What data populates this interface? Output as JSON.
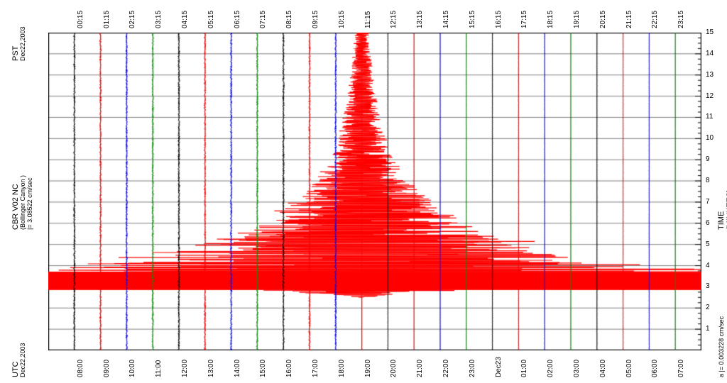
{
  "header_left": {
    "timezone": "PST",
    "date": "Dec22,2003"
  },
  "header_center": {
    "station": "CBR V02 NC",
    "location": "(Bollinger Canyon )",
    "scale_note": "= 3.08522 cm/sec"
  },
  "footer_left": {
    "timezone": "UTC",
    "date": "Dec22,2003"
  },
  "footer_right_note": "= 0.003228 cm/sec",
  "x_axis_title": "TIME (MINUTES)",
  "plot": {
    "background": "#ffffff",
    "border_color": "#000000",
    "grid_color": "#000000",
    "grid_line_width": 0.5,
    "n_traces": 24,
    "trace_colors_cycle": [
      "#000000",
      "#ff0000",
      "#0000ff",
      "#009900"
    ],
    "trace_noise_line_width": 1.0,
    "event_color": "#ff0000",
    "event_line_width": 1.2,
    "x_minutes_min": 0,
    "x_minutes_max": 15,
    "x_tick_step": 1,
    "event": {
      "trace_index": 11,
      "start_minute": 2.5,
      "envelope": [
        [
          2.5,
          0.02
        ],
        [
          3.0,
          4.5
        ],
        [
          3.2,
          13.0
        ],
        [
          3.6,
          13.0
        ],
        [
          4.0,
          9.0
        ],
        [
          4.5,
          6.5
        ],
        [
          5.0,
          5.5
        ],
        [
          5.5,
          4.0
        ],
        [
          6.0,
          3.2
        ],
        [
          6.5,
          2.6
        ],
        [
          7.0,
          2.1
        ],
        [
          8.0,
          1.4
        ],
        [
          9.0,
          0.95
        ],
        [
          10.0,
          0.7
        ],
        [
          11.0,
          0.55
        ],
        [
          12.0,
          0.42
        ],
        [
          13.0,
          0.33
        ],
        [
          14.0,
          0.26
        ],
        [
          15.0,
          0.21
        ]
      ]
    }
  },
  "left_labels_pst": [
    "00:15",
    "01:15",
    "02:15",
    "03:15",
    "04:15",
    "05:15",
    "06:15",
    "07:15",
    "08:15",
    "09:15",
    "10:15",
    "11:15",
    "12:15",
    "13:15",
    "14:15",
    "15:15",
    "16:15",
    "17:15",
    "18:15",
    "19:15",
    "20:15",
    "21:15",
    "22:15",
    "23:15"
  ],
  "right_labels_utc": [
    "08:00",
    "09:00",
    "10:00",
    "11:00",
    "12:00",
    "13:00",
    "14:00",
    "15:00",
    "16:00",
    "17:00",
    "18:00",
    "19:00",
    "20:00",
    "21:00",
    "22:00",
    "23:00",
    "Dec23",
    "01:00",
    "02:00",
    "03:00",
    "04:00",
    "05:00",
    "06:00",
    "07:00"
  ],
  "x_tick_labels": [
    "1",
    "2",
    "3",
    "4",
    "5",
    "6",
    "7",
    "8",
    "9",
    "10",
    "11",
    "12",
    "13",
    "14",
    "15"
  ]
}
